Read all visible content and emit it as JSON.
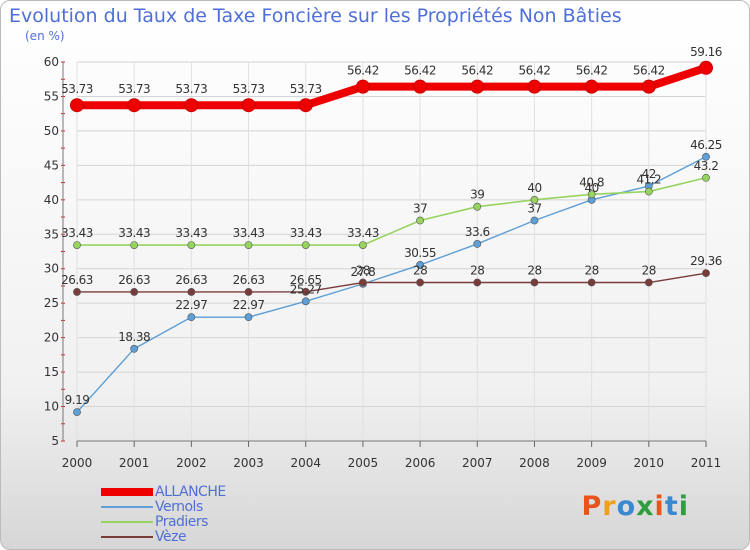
{
  "title": "Evolution du Taux de Taxe Foncière sur les Propriétés Non Bâties",
  "unit": "(en %)",
  "logo": {
    "text": "Proxiti",
    "colors": [
      "#e5551c",
      "#f0a020",
      "#3a88d0",
      "#2e9e3e",
      "#e5551c",
      "#3a88d0",
      "#2e9e3e"
    ]
  },
  "chart_data": {
    "type": "line",
    "title": "Evolution du Taux de Taxe Foncière sur les Propriétés Non Bâties",
    "ylabel": "(en %)",
    "xlabel": "",
    "categories": [
      "2000",
      "2001",
      "2002",
      "2003",
      "2004",
      "2005",
      "2006",
      "2007",
      "2008",
      "2009",
      "2010",
      "2011"
    ],
    "ylim": [
      5,
      60
    ],
    "yticks": [
      5,
      10,
      15,
      20,
      25,
      30,
      35,
      40,
      45,
      50,
      55,
      60
    ],
    "legend_position": "bottom-left",
    "series": [
      {
        "name": "ALLANCHE",
        "color": "#ee0000",
        "width": 8,
        "values": [
          53.73,
          53.73,
          53.73,
          53.73,
          53.73,
          56.42,
          56.42,
          56.42,
          56.42,
          56.42,
          56.42,
          59.16
        ],
        "labels": [
          "53.73",
          "53.73",
          "53.73",
          "53.73",
          "53.73",
          "56.42",
          "56.42",
          "56.42",
          "56.42",
          "56.42",
          "56.42",
          "59.16"
        ]
      },
      {
        "name": "Vernols",
        "color": "#5d9fd6",
        "width": 1.4,
        "values": [
          9.19,
          18.38,
          22.97,
          22.97,
          25.27,
          27.8,
          30.55,
          33.6,
          37,
          40,
          42,
          46.25
        ],
        "labels": [
          "9.19",
          "18.38",
          "22.97",
          "22.97",
          "25.27",
          "27.8",
          "30.55",
          "33.6",
          "37",
          "40",
          "42",
          "46.25"
        ]
      },
      {
        "name": "Pradiers",
        "color": "#96d45f",
        "width": 1.6,
        "values": [
          33.43,
          33.43,
          33.43,
          33.43,
          33.43,
          33.43,
          37,
          39,
          40,
          40.8,
          41.2,
          43.2
        ],
        "labels": [
          "33.43",
          "33.43",
          "33.43",
          "33.43",
          "33.43",
          "33.43",
          "37",
          "39",
          "40",
          "40.8",
          "41.2",
          "43.2"
        ]
      },
      {
        "name": "Vèze",
        "color": "#7a3b3b",
        "width": 1.4,
        "values": [
          26.63,
          26.63,
          26.63,
          26.63,
          26.65,
          28,
          28,
          28,
          28,
          28,
          28,
          29.36
        ],
        "labels": [
          "26.63",
          "26.63",
          "26.63",
          "26.63",
          "26.65",
          "28",
          "28",
          "28",
          "28",
          "28",
          "28",
          "29.36"
        ]
      }
    ]
  }
}
